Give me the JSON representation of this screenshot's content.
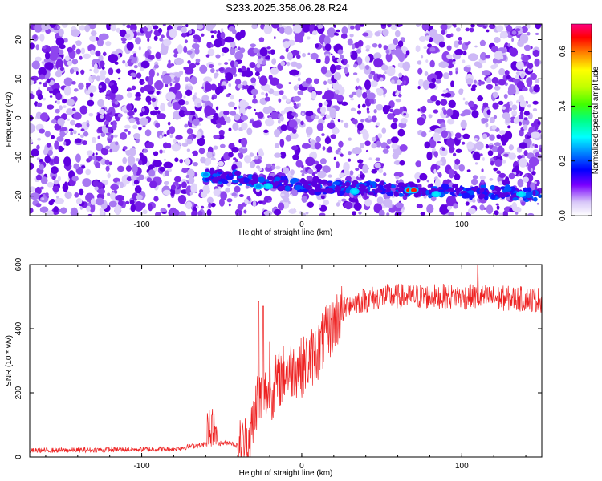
{
  "title": "S233.2025.358.06.28.R24",
  "colors": {
    "snr_line": "#ee2222",
    "blob_dark": "#6000e0",
    "blob_light": "#cdb8f6"
  },
  "chart_data": [
    {
      "type": "heatmap",
      "title": "S233.2025.358.06.28.R24",
      "xlabel": "Height of straight line (km)",
      "ylabel": "Frequency (Hz)",
      "xlim": [
        -170,
        150
      ],
      "ylim": [
        -25,
        24
      ],
      "x_ticks": [
        -100,
        0,
        100
      ],
      "y_ticks": [
        -20,
        -10,
        0,
        10,
        20
      ],
      "x_tick_labels": [
        "-100",
        "0",
        "100"
      ],
      "y_tick_labels": [
        "-20",
        "-10",
        "0",
        "10",
        "20"
      ],
      "colorbar": {
        "label": "Normalized spectral amplitude",
        "range": [
          0,
          0.7
        ],
        "ticks": [
          0,
          0.2,
          0.4,
          0.6
        ],
        "tick_labels": [
          "0.0",
          "0.2",
          "0.4",
          "0.6"
        ],
        "colormap": "rainbow"
      },
      "band_points": [
        {
          "x": -60,
          "y": -14.5,
          "v": 0.12
        },
        {
          "x": -27,
          "y": -17.5,
          "v": 0.15
        },
        {
          "x": -21,
          "y": -17.5,
          "v": 0.22
        },
        {
          "x": 33,
          "y": -18.8,
          "v": 0.2
        },
        {
          "x": 67,
          "y": -18.5,
          "v": 0.68
        },
        {
          "x": 70,
          "y": -18.5,
          "v": 0.62
        },
        {
          "x": 84,
          "y": -19.5,
          "v": 0.2
        },
        {
          "x": 137,
          "y": -19.5,
          "v": 0.2
        }
      ],
      "grid": false
    },
    {
      "type": "line",
      "xlabel": "Height of straight line (km)",
      "ylabel": "SNR (10 * v/v)",
      "xlim": [
        -170,
        150
      ],
      "ylim": [
        0,
        600
      ],
      "x_ticks": [
        -100,
        0,
        100
      ],
      "y_ticks": [
        0,
        200,
        400,
        600
      ],
      "x_tick_labels": [
        "-100",
        "0",
        "100"
      ],
      "y_tick_labels": [
        "0",
        "200",
        "400",
        "600"
      ],
      "trend_x": [
        -170,
        -80,
        -60,
        -45,
        -38,
        -32,
        -28,
        -20,
        -10,
        0,
        10,
        20,
        30,
        50,
        100,
        150
      ],
      "trend_y": [
        20,
        25,
        40,
        45,
        30,
        60,
        180,
        200,
        270,
        280,
        330,
        420,
        480,
        500,
        500,
        490
      ],
      "spikes": [
        {
          "x": -56,
          "y": 150
        },
        {
          "x": -27,
          "y": 485
        },
        {
          "x": -24,
          "y": 470
        },
        {
          "x": -20,
          "y": 360
        },
        {
          "x": 110,
          "y": 600
        }
      ],
      "grid": false
    }
  ]
}
